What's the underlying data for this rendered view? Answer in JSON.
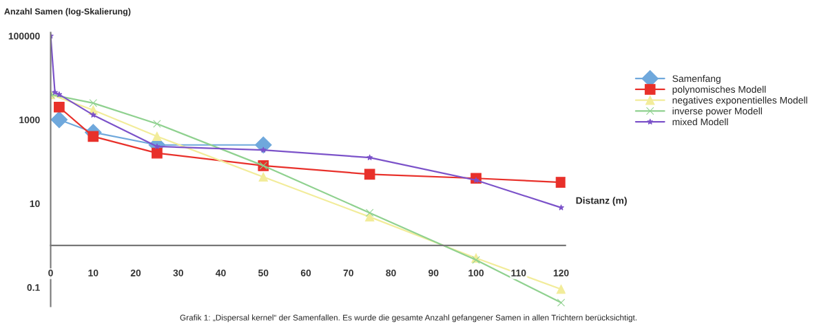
{
  "chart_data": {
    "type": "line",
    "ylabel": "Anzahl Samen (log-Skalierung)",
    "xlabel": "Distanz (m)",
    "annotations": [
      "Grafik 1: „Dispersal kernel“ der Samenfallen. Es wurde die gesamte Anzahl gefangener Samen in allen Trichtern berücksichtigt."
    ],
    "log": "y",
    "xlim": [
      0,
      121
    ],
    "xticks": [
      0,
      10,
      20,
      30,
      40,
      50,
      60,
      70,
      80,
      90,
      100,
      110,
      120
    ],
    "ylim": [
      0.035,
      120000
    ],
    "yticks": [
      0.1,
      10,
      1000,
      100000
    ],
    "grid": false,
    "legend": "right",
    "line_style": "solid",
    "series": [
      {
        "name": "Samenfang",
        "color": "#6fa8dc",
        "marker": "diamond",
        "x": [
          2,
          10,
          25,
          50
        ],
        "values": [
          1000,
          500,
          250,
          250
        ]
      },
      {
        "name": "polynomisches Modell",
        "color": "#e8302a",
        "marker": "square",
        "x": [
          2,
          10,
          25,
          50,
          75,
          100,
          120
        ],
        "values": [
          2000,
          400,
          160,
          80,
          50,
          40,
          32
        ]
      },
      {
        "name": "negatives exponentielles Modell",
        "color": "#f2ec9a",
        "marker": "triangle",
        "x": [
          0,
          10,
          25,
          50,
          75,
          100,
          120
        ],
        "values": [
          4000,
          1700,
          400,
          43,
          4.8,
          0.5,
          0.09
        ]
      },
      {
        "name": "inverse power Modell",
        "color": "#8fd18f",
        "marker": "cross",
        "x": [
          0,
          10,
          25,
          50,
          75,
          100,
          120
        ],
        "values": [
          4000,
          2500,
          800,
          80,
          6,
          0.45,
          0.043
        ]
      },
      {
        "name": "mixed Modell",
        "color": "#7b52c9",
        "marker": "star",
        "x": [
          0,
          1,
          2,
          10,
          25,
          50,
          75,
          100,
          120
        ],
        "values": [
          100000,
          4500,
          4000,
          1300,
          230,
          190,
          125,
          36,
          8
        ]
      }
    ]
  }
}
